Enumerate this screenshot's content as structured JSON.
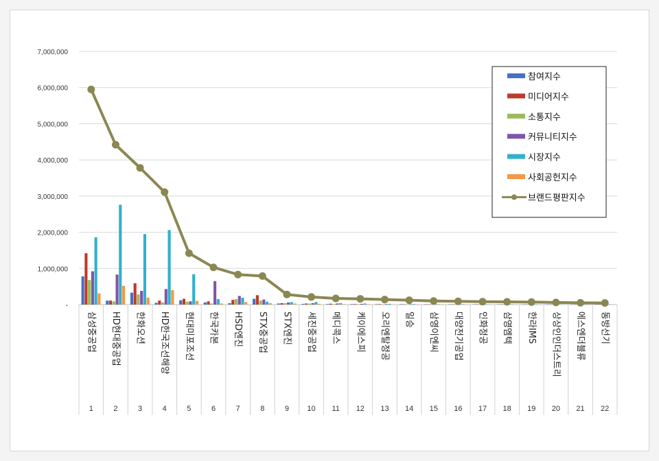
{
  "chart_data": {
    "type": "bar",
    "title": "",
    "xlabel": "",
    "ylabel": "",
    "ylim": [
      0,
      7000000
    ],
    "yticks": [
      0,
      1000000,
      2000000,
      3000000,
      4000000,
      5000000,
      6000000,
      7000000
    ],
    "ytick_labels": [
      "-",
      "1,000,000",
      "2,000,000",
      "3,000,000",
      "4,000,000",
      "5,000,000",
      "6,000,000",
      "7,000,000"
    ],
    "grid": true,
    "legend_position": "top-right",
    "categories": [
      "삼성중공업",
      "HD현대중공업",
      "한화오션",
      "HD한국조선해양",
      "현대미포조선",
      "한국카본",
      "HSD엔진",
      "STX중공업",
      "STX엔진",
      "세진중공업",
      "메디콕스",
      "케이에스피",
      "오리엔탈정공",
      "일승",
      "삼영이엔씨",
      "대양전기공업",
      "인화정공",
      "삼영엠텍",
      "한라IMS",
      "상상인인더스트리",
      "에스엔더블류",
      "동방선기"
    ],
    "ranks": [
      "1",
      "2",
      "3",
      "4",
      "5",
      "6",
      "7",
      "8",
      "9",
      "10",
      "11",
      "12",
      "13",
      "14",
      "15",
      "16",
      "17",
      "18",
      "19",
      "20",
      "21",
      "22"
    ],
    "series": [
      {
        "name": "참여지수",
        "kind": "bar",
        "color": "#4472c4",
        "values": [
          780000,
          110000,
          330000,
          50000,
          120000,
          60000,
          40000,
          160000,
          30000,
          20000,
          15000,
          15000,
          12000,
          12000,
          10000,
          10000,
          9000,
          9000,
          8000,
          8000,
          7000,
          7000
        ]
      },
      {
        "name": "미디어지수",
        "kind": "bar",
        "color": "#c0392b",
        "values": [
          1420000,
          110000,
          590000,
          110000,
          160000,
          90000,
          130000,
          260000,
          40000,
          30000,
          25000,
          15000,
          14000,
          10000,
          10000,
          10000,
          9000,
          8000,
          8000,
          8000,
          7000,
          7000
        ]
      },
      {
        "name": "소통지수",
        "kind": "bar",
        "color": "#9bbb59",
        "values": [
          680000,
          90000,
          280000,
          60000,
          80000,
          30000,
          150000,
          110000,
          40000,
          25000,
          15000,
          12000,
          10000,
          9000,
          9000,
          9000,
          8000,
          8000,
          7000,
          7000,
          6000,
          6000
        ]
      },
      {
        "name": "커뮤니티지수",
        "kind": "bar",
        "color": "#7e57a8",
        "values": [
          920000,
          830000,
          380000,
          430000,
          90000,
          650000,
          240000,
          140000,
          60000,
          40000,
          30000,
          20000,
          15000,
          12000,
          12000,
          10000,
          10000,
          9000,
          9000,
          8000,
          8000,
          7000
        ]
      },
      {
        "name": "시장지수",
        "kind": "bar",
        "color": "#31b0cc",
        "values": [
          1860000,
          2760000,
          1950000,
          2060000,
          840000,
          150000,
          190000,
          80000,
          70000,
          70000,
          40000,
          30000,
          20000,
          15000,
          12000,
          12000,
          10000,
          10000,
          10000,
          9000,
          9000,
          8000
        ]
      },
      {
        "name": "사회공헌지수",
        "kind": "bar",
        "color": "#f79646",
        "values": [
          310000,
          520000,
          190000,
          400000,
          100000,
          30000,
          70000,
          40000,
          30000,
          20000,
          15000,
          12000,
          10000,
          9000,
          9000,
          8000,
          8000,
          7000,
          7000,
          6000,
          6000,
          6000
        ]
      },
      {
        "name": "브랜드평판지수",
        "kind": "line",
        "color": "#8b8752",
        "values": [
          5950000,
          4420000,
          3780000,
          3110000,
          1420000,
          1030000,
          830000,
          790000,
          280000,
          210000,
          170000,
          160000,
          140000,
          120000,
          100000,
          90000,
          80000,
          75000,
          70000,
          60000,
          50000,
          45000
        ]
      }
    ]
  }
}
